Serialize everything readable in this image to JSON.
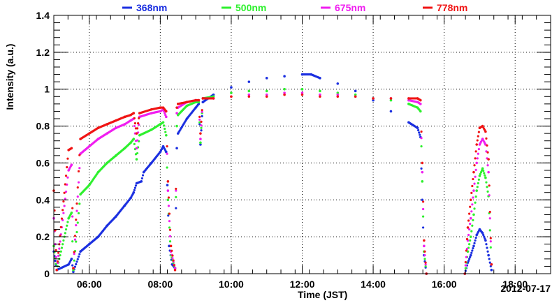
{
  "chart_data": {
    "type": "scatter",
    "title": "",
    "xlabel": "Time (JST)",
    "ylabel": "Intensity (a.u.)",
    "date_label": "2012-07-17",
    "xlim": [
      "05:00",
      "19:00"
    ],
    "ylim": [
      0,
      1.4
    ],
    "grid": true,
    "legend_position": "top",
    "x_ticks": [
      "06:00",
      "08:00",
      "10:00",
      "12:00",
      "14:00",
      "16:00",
      "18:00"
    ],
    "y_ticks": [
      "0",
      "0.2",
      "0.4",
      "0.6",
      "0.8",
      "1",
      "1.2",
      "1.4"
    ],
    "series": [
      {
        "name": "368nm",
        "color": "#1b2fe0",
        "points": [
          [
            "05:00",
            0.12
          ],
          [
            "05:05",
            0.02
          ],
          [
            "05:25",
            0.05
          ],
          [
            "05:30",
            0.08
          ],
          [
            "05:33",
            0.01
          ],
          [
            "05:45",
            0.12
          ],
          [
            "06:00",
            0.16
          ],
          [
            "06:15",
            0.2
          ],
          [
            "06:30",
            0.26
          ],
          [
            "06:45",
            0.31
          ],
          [
            "07:00",
            0.37
          ],
          [
            "07:10",
            0.41
          ],
          [
            "07:15",
            0.44
          ],
          [
            "07:20",
            0.49
          ],
          [
            "07:28",
            0.5
          ],
          [
            "07:32",
            0.55
          ],
          [
            "07:45",
            0.6
          ],
          [
            "08:00",
            0.66
          ],
          [
            "08:05",
            0.69
          ],
          [
            "08:10",
            0.66
          ],
          [
            "08:12",
            0.48
          ],
          [
            "08:15",
            0.15
          ],
          [
            "08:20",
            0.05
          ],
          [
            "08:25",
            0.03
          ],
          [
            "08:28",
            0.68
          ],
          [
            "08:30",
            0.76
          ],
          [
            "08:45",
            0.84
          ],
          [
            "09:00",
            0.9
          ],
          [
            "09:05",
            0.92
          ],
          [
            "09:08",
            0.7
          ],
          [
            "09:12",
            0.93
          ],
          [
            "09:30",
            0.97
          ],
          [
            "10:00",
            1.01
          ],
          [
            "10:30",
            1.04
          ],
          [
            "11:00",
            1.06
          ],
          [
            "11:30",
            1.07
          ],
          [
            "12:00",
            1.08
          ],
          [
            "12:15",
            1.08
          ],
          [
            "12:30",
            1.06
          ],
          [
            "13:00",
            1.03
          ],
          [
            "13:30",
            0.99
          ],
          [
            "14:00",
            0.94
          ],
          [
            "14:30",
            0.88
          ],
          [
            "15:00",
            0.82
          ],
          [
            "15:15",
            0.79
          ],
          [
            "15:20",
            0.74
          ],
          [
            "15:23",
            0.4
          ],
          [
            "15:26",
            0.1
          ],
          [
            "15:30",
            0.0
          ],
          [
            "16:35",
            0.0
          ],
          [
            "16:40",
            0.06
          ],
          [
            "16:45",
            0.1
          ],
          [
            "16:50",
            0.15
          ],
          [
            "16:55",
            0.21
          ],
          [
            "17:00",
            0.24
          ],
          [
            "17:05",
            0.22
          ],
          [
            "17:10",
            0.18
          ],
          [
            "17:15",
            0.1
          ],
          [
            "17:20",
            0.02
          ]
        ]
      },
      {
        "name": "500nm",
        "color": "#2ef02e",
        "points": [
          [
            "05:00",
            0.15
          ],
          [
            "05:05",
            0.02
          ],
          [
            "05:25",
            0.3
          ],
          [
            "05:30",
            0.33
          ],
          [
            "05:33",
            0.02
          ],
          [
            "05:45",
            0.43
          ],
          [
            "06:00",
            0.48
          ],
          [
            "06:15",
            0.55
          ],
          [
            "06:30",
            0.6
          ],
          [
            "06:45",
            0.64
          ],
          [
            "07:00",
            0.68
          ],
          [
            "07:10",
            0.71
          ],
          [
            "07:15",
            0.73
          ],
          [
            "07:20",
            0.62
          ],
          [
            "07:25",
            0.75
          ],
          [
            "07:45",
            0.78
          ],
          [
            "08:00",
            0.81
          ],
          [
            "08:05",
            0.82
          ],
          [
            "08:10",
            0.75
          ],
          [
            "08:13",
            0.4
          ],
          [
            "08:18",
            0.1
          ],
          [
            "08:25",
            0.03
          ],
          [
            "08:28",
            0.8
          ],
          [
            "08:30",
            0.86
          ],
          [
            "08:45",
            0.91
          ],
          [
            "09:00",
            0.93
          ],
          [
            "09:05",
            0.93
          ],
          [
            "09:08",
            0.71
          ],
          [
            "09:12",
            0.95
          ],
          [
            "09:30",
            0.96
          ],
          [
            "10:00",
            0.98
          ],
          [
            "10:30",
            0.99
          ],
          [
            "11:00",
            0.99
          ],
          [
            "11:30",
            1.0
          ],
          [
            "12:00",
            1.0
          ],
          [
            "12:30",
            0.99
          ],
          [
            "13:00",
            0.98
          ],
          [
            "13:30",
            0.97
          ],
          [
            "14:00",
            0.95
          ],
          [
            "14:30",
            0.94
          ],
          [
            "15:00",
            0.92
          ],
          [
            "15:15",
            0.9
          ],
          [
            "15:20",
            0.88
          ],
          [
            "15:23",
            0.5
          ],
          [
            "15:26",
            0.12
          ],
          [
            "15:30",
            0.0
          ],
          [
            "16:35",
            0.0
          ],
          [
            "16:40",
            0.12
          ],
          [
            "16:45",
            0.2
          ],
          [
            "16:50",
            0.32
          ],
          [
            "16:55",
            0.45
          ],
          [
            "17:00",
            0.53
          ],
          [
            "17:05",
            0.57
          ],
          [
            "17:10",
            0.52
          ],
          [
            "17:15",
            0.42
          ],
          [
            "17:20",
            0.05
          ]
        ]
      },
      {
        "name": "675nm",
        "color": "#f01ef0",
        "points": [
          [
            "05:00",
            0.3
          ],
          [
            "05:05",
            0.02
          ],
          [
            "05:25",
            0.56
          ],
          [
            "05:30",
            0.59
          ],
          [
            "05:33",
            0.03
          ],
          [
            "05:45",
            0.65
          ],
          [
            "06:00",
            0.69
          ],
          [
            "06:15",
            0.73
          ],
          [
            "06:30",
            0.76
          ],
          [
            "06:45",
            0.79
          ],
          [
            "07:00",
            0.81
          ],
          [
            "07:10",
            0.83
          ],
          [
            "07:15",
            0.84
          ],
          [
            "07:20",
            0.68
          ],
          [
            "07:25",
            0.85
          ],
          [
            "07:45",
            0.87
          ],
          [
            "08:00",
            0.88
          ],
          [
            "08:05",
            0.89
          ],
          [
            "08:10",
            0.85
          ],
          [
            "08:13",
            0.45
          ],
          [
            "08:18",
            0.12
          ],
          [
            "08:25",
            0.03
          ],
          [
            "08:28",
            0.87
          ],
          [
            "08:30",
            0.9
          ],
          [
            "08:45",
            0.93
          ],
          [
            "09:00",
            0.94
          ],
          [
            "09:05",
            0.94
          ],
          [
            "09:08",
            0.73
          ],
          [
            "09:12",
            0.95
          ],
          [
            "09:30",
            0.95
          ],
          [
            "10:00",
            0.96
          ],
          [
            "10:30",
            0.97
          ],
          [
            "11:00",
            0.97
          ],
          [
            "11:30",
            0.98
          ],
          [
            "12:00",
            0.98
          ],
          [
            "12:30",
            0.97
          ],
          [
            "13:00",
            0.97
          ],
          [
            "13:30",
            0.96
          ],
          [
            "14:00",
            0.95
          ],
          [
            "14:30",
            0.95
          ],
          [
            "15:00",
            0.94
          ],
          [
            "15:15",
            0.93
          ],
          [
            "15:20",
            0.92
          ],
          [
            "15:23",
            0.55
          ],
          [
            "15:26",
            0.15
          ],
          [
            "15:30",
            0.0
          ],
          [
            "16:35",
            0.0
          ],
          [
            "16:40",
            0.18
          ],
          [
            "16:45",
            0.3
          ],
          [
            "16:50",
            0.45
          ],
          [
            "16:55",
            0.6
          ],
          [
            "17:00",
            0.7
          ],
          [
            "17:05",
            0.73
          ],
          [
            "17:10",
            0.7
          ],
          [
            "17:15",
            0.55
          ],
          [
            "17:20",
            0.05
          ]
        ]
      },
      {
        "name": "778nm",
        "color": "#f01414",
        "points": [
          [
            "05:00",
            0.45
          ],
          [
            "05:05",
            0.02
          ],
          [
            "05:25",
            0.67
          ],
          [
            "05:30",
            0.68
          ],
          [
            "05:33",
            0.03
          ],
          [
            "05:45",
            0.73
          ],
          [
            "06:00",
            0.76
          ],
          [
            "06:15",
            0.79
          ],
          [
            "06:30",
            0.81
          ],
          [
            "06:45",
            0.83
          ],
          [
            "07:00",
            0.85
          ],
          [
            "07:10",
            0.86
          ],
          [
            "07:15",
            0.87
          ],
          [
            "07:20",
            0.76
          ],
          [
            "07:25",
            0.87
          ],
          [
            "07:45",
            0.89
          ],
          [
            "08:00",
            0.9
          ],
          [
            "08:05",
            0.9
          ],
          [
            "08:10",
            0.88
          ],
          [
            "08:13",
            0.5
          ],
          [
            "08:18",
            0.15
          ],
          [
            "08:25",
            0.02
          ],
          [
            "08:28",
            0.9
          ],
          [
            "08:30",
            0.92
          ],
          [
            "08:45",
            0.93
          ],
          [
            "09:00",
            0.94
          ],
          [
            "09:05",
            0.94
          ],
          [
            "09:08",
            0.76
          ],
          [
            "09:12",
            0.95
          ],
          [
            "09:30",
            0.95
          ],
          [
            "10:00",
            0.96
          ],
          [
            "10:30",
            0.96
          ],
          [
            "11:00",
            0.96
          ],
          [
            "11:30",
            0.97
          ],
          [
            "12:00",
            0.97
          ],
          [
            "12:30",
            0.96
          ],
          [
            "13:00",
            0.96
          ],
          [
            "13:30",
            0.96
          ],
          [
            "14:00",
            0.95
          ],
          [
            "14:30",
            0.95
          ],
          [
            "15:00",
            0.95
          ],
          [
            "15:15",
            0.95
          ],
          [
            "15:20",
            0.94
          ],
          [
            "15:23",
            0.6
          ],
          [
            "15:26",
            0.18
          ],
          [
            "15:30",
            0.0
          ],
          [
            "16:35",
            0.0
          ],
          [
            "16:40",
            0.25
          ],
          [
            "16:45",
            0.4
          ],
          [
            "16:50",
            0.55
          ],
          [
            "16:55",
            0.7
          ],
          [
            "17:00",
            0.79
          ],
          [
            "17:05",
            0.8
          ],
          [
            "17:10",
            0.77
          ],
          [
            "17:15",
            0.62
          ],
          [
            "17:20",
            0.05
          ]
        ]
      }
    ]
  }
}
